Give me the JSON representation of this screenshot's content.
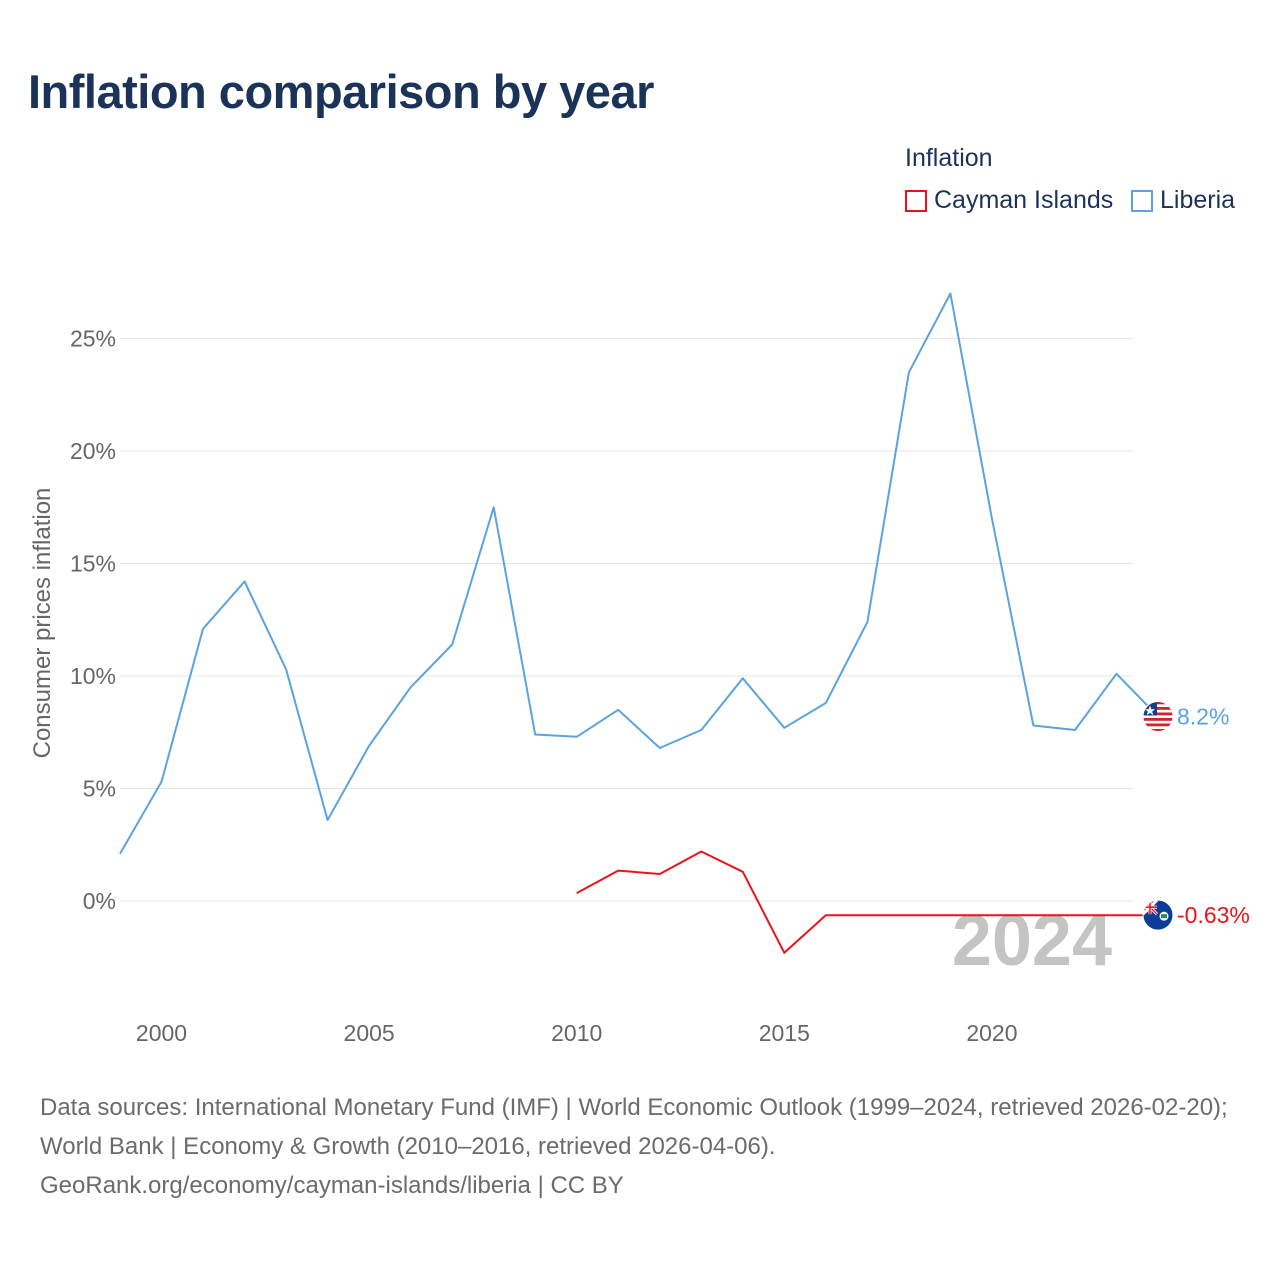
{
  "title": "Inflation comparison by year",
  "legend": {
    "title": "Inflation",
    "items": [
      {
        "label": "Cayman Islands",
        "color": "#e8141b"
      },
      {
        "label": "Liberia",
        "color": "#5aa3e0"
      }
    ]
  },
  "chart_data": {
    "type": "line",
    "title": "Inflation comparison by year",
    "ylabel": "Consumer prices inflation",
    "xlabel": "",
    "xlim": [
      1999,
      2024
    ],
    "ylim": [
      -5,
      27
    ],
    "x_ticks": [
      2000,
      2005,
      2010,
      2015,
      2020
    ],
    "x_tick_labels": [
      "2000",
      "2005",
      "2010",
      "2015",
      "2020"
    ],
    "y_ticks": [
      0,
      5,
      10,
      15,
      20,
      25
    ],
    "y_tick_labels": [
      "0%",
      "5%",
      "10%",
      "15%",
      "20%",
      "25%"
    ],
    "watermark_year": "2024",
    "series": [
      {
        "name": "Liberia",
        "color": "#5aa3e0",
        "end_label": "8.2%",
        "x": [
          1999,
          2000,
          2001,
          2002,
          2003,
          2004,
          2005,
          2006,
          2007,
          2008,
          2009,
          2010,
          2011,
          2012,
          2013,
          2014,
          2015,
          2016,
          2017,
          2018,
          2019,
          2020,
          2021,
          2022,
          2023,
          2024
        ],
        "values": [
          2.1,
          5.3,
          12.1,
          14.2,
          10.3,
          3.6,
          6.9,
          9.5,
          11.4,
          17.5,
          7.4,
          7.3,
          8.5,
          6.8,
          7.6,
          9.9,
          7.7,
          8.8,
          12.4,
          23.5,
          27.0,
          17.0,
          7.8,
          7.6,
          10.1,
          8.2
        ]
      },
      {
        "name": "Cayman Islands",
        "color": "#e8141b",
        "end_label": "-0.63%",
        "x": [
          2010,
          2011,
          2012,
          2013,
          2014,
          2015,
          2016,
          2017,
          2018,
          2019,
          2020,
          2021,
          2022,
          2023,
          2024
        ],
        "values": [
          0.35,
          1.35,
          1.2,
          2.2,
          1.3,
          -2.3,
          -0.63,
          -0.63,
          -0.63,
          -0.63,
          -0.63,
          -0.63,
          -0.63,
          -0.63,
          -0.63
        ]
      }
    ]
  },
  "footer": {
    "sources": "Data sources: International Monetary Fund (IMF) | World Economic Outlook (1999–2024, retrieved 2026-02-20); World Bank | Economy & Growth (2010–2016, retrieved 2026-04-06).",
    "link": "GeoRank.org/economy/cayman-islands/liberia | CC BY"
  }
}
